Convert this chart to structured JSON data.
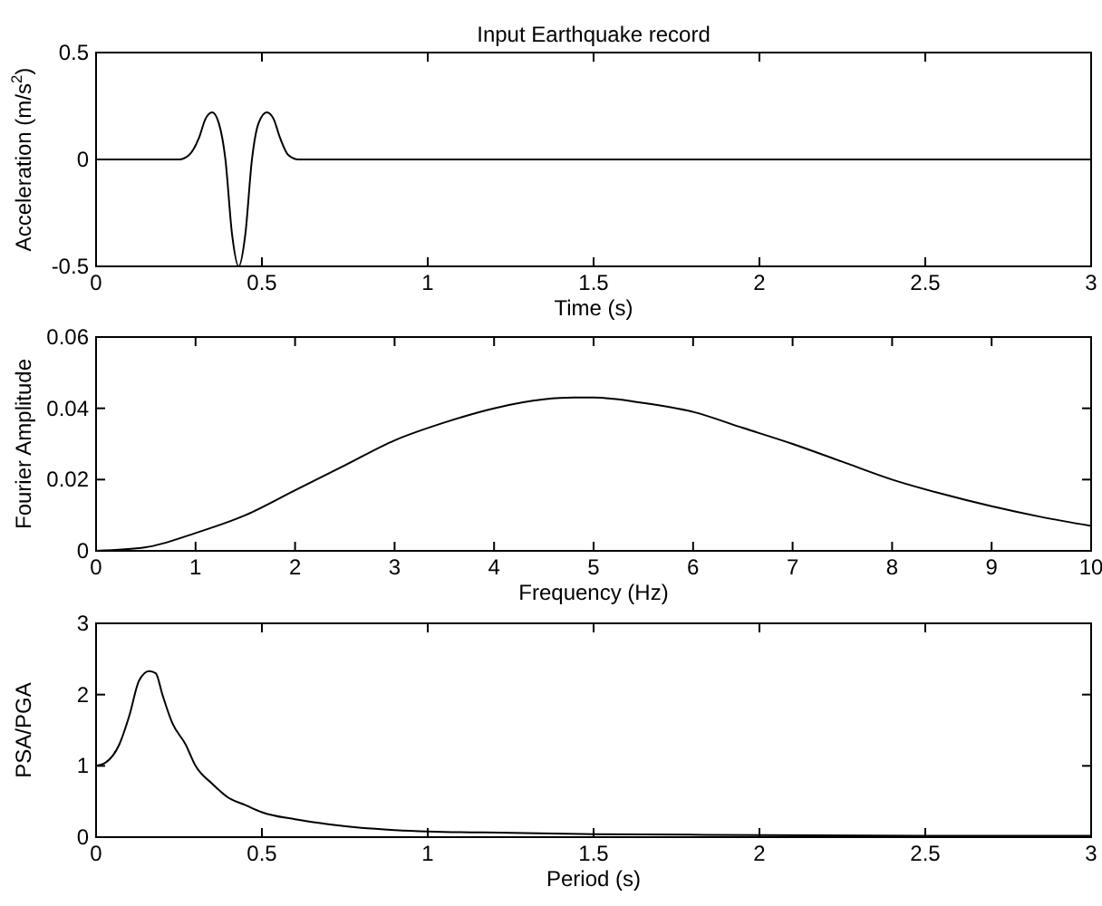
{
  "chart_data": [
    {
      "type": "line",
      "title": "Input Earthquake record",
      "xlabel": "Time (s)",
      "ylabel": "Acceleration (m/s$^{2}$)",
      "xlim": [
        0,
        3
      ],
      "ylim": [
        -0.5,
        0.5
      ],
      "xticks": [
        0,
        0.5,
        1,
        1.5,
        2,
        2.5,
        3
      ],
      "yticks": [
        -0.5,
        0,
        0.5
      ],
      "series": [
        {
          "color": "#000000",
          "x": [
            0,
            0.25,
            0.28,
            0.31,
            0.33,
            0.35,
            0.37,
            0.39,
            0.41,
            0.43,
            0.45,
            0.47,
            0.49,
            0.515,
            0.535,
            0.555,
            0.58,
            0.61,
            3
          ],
          "values": [
            0,
            0,
            0.02,
            0.1,
            0.19,
            0.22,
            0.17,
            0,
            -0.35,
            -0.5,
            -0.35,
            0,
            0.17,
            0.22,
            0.19,
            0.1,
            0.02,
            0,
            0
          ]
        }
      ]
    },
    {
      "type": "line",
      "xlabel": "Frequency (Hz)",
      "ylabel": "Fourier Amplitude",
      "xlim": [
        0,
        10
      ],
      "ylim": [
        0,
        0.06
      ],
      "xticks": [
        0,
        1,
        2,
        3,
        4,
        5,
        6,
        7,
        8,
        9,
        10
      ],
      "yticks": [
        0,
        0.02,
        0.04,
        0.06
      ],
      "series": [
        {
          "color": "#000000",
          "x": [
            0,
            0.5,
            1,
            1.5,
            2,
            2.5,
            3,
            3.5,
            4,
            4.5,
            4.8,
            5,
            5.5,
            6,
            6.5,
            7,
            7.5,
            8,
            8.5,
            9,
            9.5,
            10
          ],
          "values": [
            0,
            0.001,
            0.005,
            0.01,
            0.017,
            0.024,
            0.031,
            0.036,
            0.04,
            0.0425,
            0.043,
            0.043,
            0.0415,
            0.039,
            0.0345,
            0.03,
            0.025,
            0.02,
            0.016,
            0.0125,
            0.0095,
            0.007
          ]
        }
      ]
    },
    {
      "type": "line",
      "xlabel": "Period (s)",
      "ylabel": "PSA/PGA",
      "xlim": [
        0,
        3
      ],
      "ylim": [
        0,
        3
      ],
      "xticks": [
        0,
        0.5,
        1,
        1.5,
        2,
        2.5,
        3
      ],
      "yticks": [
        0,
        1,
        2,
        3
      ],
      "series": [
        {
          "color": "#000000",
          "x": [
            0,
            0.03,
            0.07,
            0.1,
            0.13,
            0.16,
            0.18,
            0.2,
            0.23,
            0.27,
            0.3,
            0.35,
            0.4,
            0.45,
            0.5,
            0.6,
            0.7,
            0.8,
            0.9,
            1,
            1.25,
            1.5,
            2,
            2.5,
            3
          ],
          "values": [
            1,
            1.05,
            1.3,
            1.7,
            2.2,
            2.33,
            2.3,
            2,
            1.6,
            1.3,
            1,
            0.75,
            0.55,
            0.45,
            0.35,
            0.25,
            0.18,
            0.13,
            0.1,
            0.08,
            0.06,
            0.04,
            0.03,
            0.02,
            0.02
          ]
        }
      ]
    }
  ]
}
